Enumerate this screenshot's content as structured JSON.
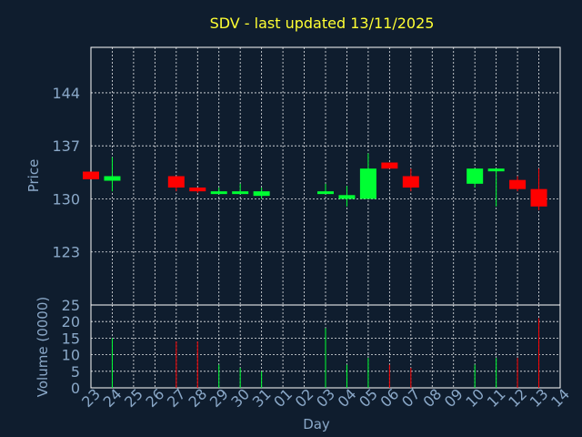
{
  "chart_data": {
    "title": "SDV - last updated 13/11/2025",
    "colors": {
      "background": "#0f1d2e",
      "up": "#00ff33",
      "down": "#ff0000",
      "title": "#ffff33",
      "text": "#8aa8c8"
    },
    "price_panel": {
      "type": "candlestick",
      "ylabel": "Price",
      "ylim": [
        116,
        150
      ],
      "yticks": [
        123,
        130,
        137,
        144
      ],
      "grid": true
    },
    "volume_panel": {
      "type": "bar",
      "ylabel": "Volume (0000)",
      "ylim": [
        0,
        25
      ],
      "yticks": [
        0,
        5,
        10,
        15,
        20,
        25
      ],
      "grid": true
    },
    "xlabel": "Day",
    "days": [
      "23",
      "24",
      "25",
      "26",
      "27",
      "28",
      "29",
      "30",
      "31",
      "01",
      "02",
      "03",
      "04",
      "05",
      "06",
      "07",
      "08",
      "09",
      "10",
      "11",
      "12",
      "13",
      "14"
    ],
    "candles": [
      {
        "day": "23",
        "open": 133.6,
        "high": 133.6,
        "low": 132.6,
        "close": 132.6,
        "volume": 0
      },
      {
        "day": "24",
        "open": 132.4,
        "high": 135.5,
        "low": 131.0,
        "close": 133.0,
        "volume": 15
      },
      {
        "day": "27",
        "open": 133.0,
        "high": 133.0,
        "low": 131.0,
        "close": 131.5,
        "volume": 14
      },
      {
        "day": "28",
        "open": 131.5,
        "high": 131.5,
        "low": 130.8,
        "close": 131.0,
        "volume": 14
      },
      {
        "day": "29",
        "open": 130.8,
        "high": 131.5,
        "low": 130.8,
        "close": 131.0,
        "volume": 7
      },
      {
        "day": "30",
        "open": 130.8,
        "high": 132.0,
        "low": 130.8,
        "close": 131.0,
        "volume": 6
      },
      {
        "day": "31",
        "open": 130.4,
        "high": 131.5,
        "low": 130.0,
        "close": 131.0,
        "volume": 5
      },
      {
        "day": "03",
        "open": 130.8,
        "high": 132.0,
        "low": 130.8,
        "close": 131.0,
        "volume": 18
      },
      {
        "day": "04",
        "open": 130.0,
        "high": 131.7,
        "low": 129.0,
        "close": 130.5,
        "volume": 7
      },
      {
        "day": "05",
        "open": 130.0,
        "high": 136.0,
        "low": 130.0,
        "close": 134.0,
        "volume": 9
      },
      {
        "day": "06",
        "open": 134.8,
        "high": 134.8,
        "low": 134.0,
        "close": 134.0,
        "volume": 7
      },
      {
        "day": "07",
        "open": 133.0,
        "high": 134.0,
        "low": 131.0,
        "close": 131.5,
        "volume": 6
      },
      {
        "day": "10",
        "open": 132.0,
        "high": 134.0,
        "low": 131.5,
        "close": 134.0,
        "volume": 7
      },
      {
        "day": "11",
        "open": 133.8,
        "high": 134.0,
        "low": 129.0,
        "close": 134.0,
        "volume": 9
      },
      {
        "day": "12",
        "open": 132.5,
        "high": 133.0,
        "low": 131.0,
        "close": 131.3,
        "volume": 9
      },
      {
        "day": "13",
        "open": 131.3,
        "high": 134.0,
        "low": 128.5,
        "close": 129.0,
        "volume": 21
      }
    ]
  }
}
